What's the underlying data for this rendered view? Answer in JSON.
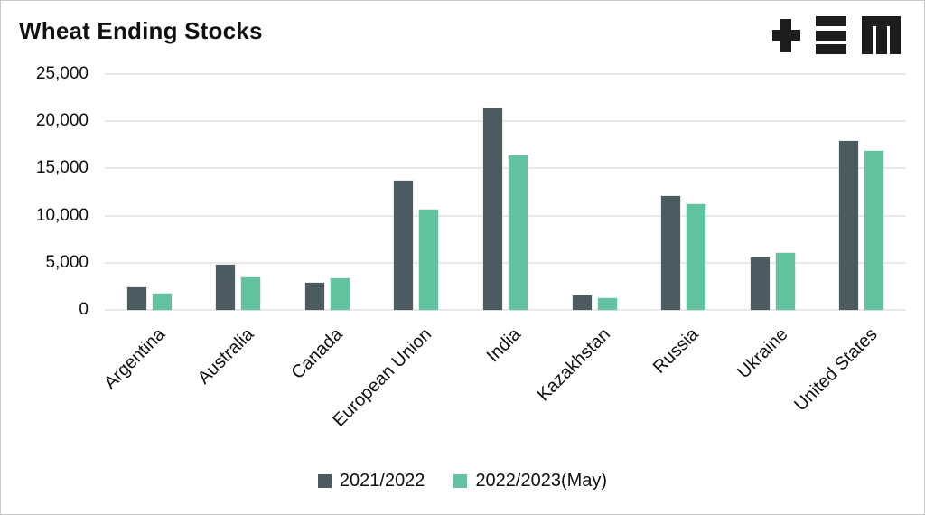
{
  "header": {
    "logo_icons": [
      "plus-icon",
      "triple-bar-icon",
      "m-icon"
    ]
  },
  "colors": {
    "series_1": "#4b5b5f",
    "series_2": "#63c3a0",
    "gridline": "#e9e9e9",
    "text": "#111111",
    "logo": "#1d1d1d",
    "canvas_border": "#c9c9c9"
  },
  "chart_data": {
    "type": "bar",
    "title": "Wheat Ending Stocks",
    "categories": [
      "Argentina",
      "Australia",
      "Canada",
      "European Union",
      "India",
      "Kazakhstan",
      "Russia",
      "Ukraine",
      "United States"
    ],
    "series": [
      {
        "name": "2021/2022",
        "color": "#4b5b5f",
        "values": [
          2350,
          4800,
          2850,
          13700,
          21400,
          1500,
          12100,
          5600,
          17900
        ]
      },
      {
        "name": "2022/2023(May)",
        "color": "#63c3a0",
        "values": [
          1750,
          3450,
          3400,
          10650,
          16400,
          1250,
          11200,
          6000,
          16900
        ]
      }
    ],
    "ylim": [
      0,
      25000
    ],
    "ytick_step": 5000,
    "ytick_labels": [
      "0",
      "5,000",
      "10,000",
      "15,000",
      "20,000",
      "25,000"
    ],
    "grid": "horizontal-only",
    "legend_position": "bottom-center",
    "xlabel": "",
    "ylabel": ""
  }
}
